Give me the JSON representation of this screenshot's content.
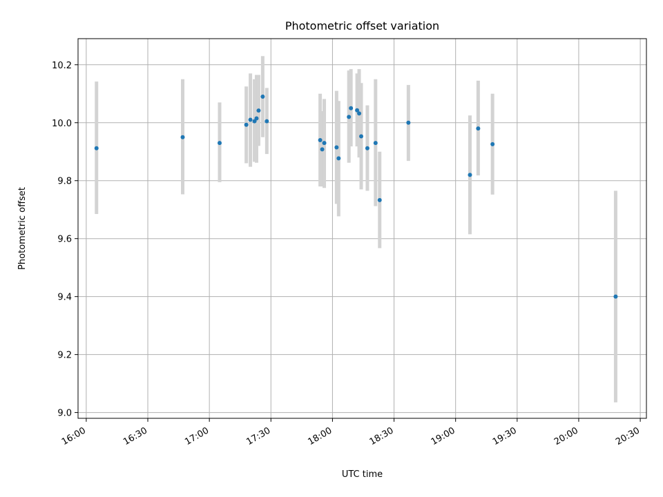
{
  "chart_data": {
    "type": "scatter",
    "title": "Photometric offset variation",
    "xlabel": "UTC time",
    "ylabel": "Photometric offset",
    "xlim": [
      "15:56",
      "20:33"
    ],
    "ylim": [
      8.98,
      10.29
    ],
    "grid": true,
    "x_ticks": [
      "16:00",
      "16:30",
      "17:00",
      "17:30",
      "18:00",
      "18:30",
      "19:00",
      "19:30",
      "20:00",
      "20:30"
    ],
    "y_ticks": [
      "9.0",
      "9.2",
      "9.4",
      "9.6",
      "9.8",
      "10.0",
      "10.2"
    ],
    "marker_color": "#1f77b4",
    "errorbar_color": "#d3d3d3",
    "series": [
      {
        "points": [
          {
            "x": "16:05",
            "y": 9.912,
            "lo": 9.685,
            "hi": 10.142
          },
          {
            "x": "16:47",
            "y": 9.95,
            "lo": 9.753,
            "hi": 10.15
          },
          {
            "x": "17:05",
            "y": 9.93,
            "lo": 9.795,
            "hi": 10.07
          },
          {
            "x": "17:18",
            "y": 9.993,
            "lo": 9.86,
            "hi": 10.125
          },
          {
            "x": "17:20",
            "y": 10.01,
            "lo": 9.848,
            "hi": 10.17
          },
          {
            "x": "17:22",
            "y": 10.005,
            "lo": 9.865,
            "hi": 10.15
          },
          {
            "x": "17:23",
            "y": 10.015,
            "lo": 9.862,
            "hi": 10.165
          },
          {
            "x": "17:24",
            "y": 10.042,
            "lo": 9.92,
            "hi": 10.165
          },
          {
            "x": "17:26",
            "y": 10.09,
            "lo": 9.95,
            "hi": 10.23
          },
          {
            "x": "17:28",
            "y": 10.005,
            "lo": 9.892,
            "hi": 10.12
          },
          {
            "x": "17:54",
            "y": 9.94,
            "lo": 9.78,
            "hi": 10.1
          },
          {
            "x": "17:55",
            "y": 9.908,
            "lo": 9.78,
            "hi": 10.04
          },
          {
            "x": "17:56",
            "y": 9.93,
            "lo": 9.775,
            "hi": 10.082
          },
          {
            "x": "18:02",
            "y": 9.915,
            "lo": 9.72,
            "hi": 10.11
          },
          {
            "x": "18:03",
            "y": 9.877,
            "lo": 9.677,
            "hi": 10.075
          },
          {
            "x": "18:08",
            "y": 10.02,
            "lo": 9.862,
            "hi": 10.18
          },
          {
            "x": "18:09",
            "y": 10.05,
            "lo": 9.918,
            "hi": 10.185
          },
          {
            "x": "18:12",
            "y": 10.043,
            "lo": 9.918,
            "hi": 10.17
          },
          {
            "x": "18:13",
            "y": 10.032,
            "lo": 9.88,
            "hi": 10.185
          },
          {
            "x": "18:14",
            "y": 9.953,
            "lo": 9.77,
            "hi": 10.137
          },
          {
            "x": "18:17",
            "y": 9.912,
            "lo": 9.765,
            "hi": 10.06
          },
          {
            "x": "18:21",
            "y": 9.93,
            "lo": 9.712,
            "hi": 10.15
          },
          {
            "x": "18:23",
            "y": 9.733,
            "lo": 9.567,
            "hi": 9.9
          },
          {
            "x": "18:37",
            "y": 10.0,
            "lo": 9.868,
            "hi": 10.13
          },
          {
            "x": "19:07",
            "y": 9.82,
            "lo": 9.615,
            "hi": 10.025
          },
          {
            "x": "19:11",
            "y": 9.98,
            "lo": 9.818,
            "hi": 10.145
          },
          {
            "x": "19:18",
            "y": 9.926,
            "lo": 9.752,
            "hi": 10.1
          },
          {
            "x": "20:18",
            "y": 9.4,
            "lo": 9.035,
            "hi": 9.765
          }
        ]
      }
    ]
  }
}
